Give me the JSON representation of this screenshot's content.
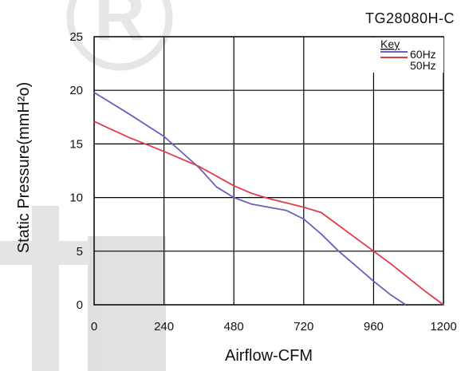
{
  "chart_data": {
    "type": "line",
    "title": "TG28080H-C",
    "xlabel": "Airflow-CFM",
    "ylabel": "Static Pressure(mmH²o)",
    "xlim": [
      0,
      1200
    ],
    "ylim": [
      0,
      25
    ],
    "xticks": [
      0,
      240,
      480,
      720,
      960,
      1200
    ],
    "xtick_labels": [
      "0",
      "240",
      "480",
      "720",
      "960",
      "1200"
    ],
    "yticks": [
      0,
      5,
      10,
      15,
      20,
      25
    ],
    "ytick_labels": [
      "0",
      "5",
      "10",
      "15",
      "20",
      "25"
    ],
    "grid": true,
    "legend": {
      "title": "Key",
      "placement": "top-right"
    },
    "series": [
      {
        "name": "60Hz",
        "color": "#6a5fc0",
        "x": [
          0,
          120,
          240,
          360,
          420,
          480,
          540,
          600,
          660,
          720,
          780,
          840,
          900,
          960,
          1020,
          1070
        ],
        "y": [
          19.8,
          17.8,
          15.7,
          12.8,
          11.0,
          10.0,
          9.4,
          9.1,
          8.8,
          8.0,
          6.6,
          5.0,
          3.6,
          2.2,
          0.9,
          0.0
        ]
      },
      {
        "name": "50Hz",
        "color": "#e23b4a",
        "x": [
          0,
          120,
          240,
          360,
          420,
          480,
          540,
          600,
          660,
          720,
          780,
          840,
          900,
          960,
          1020,
          1080,
          1140,
          1200
        ],
        "y": [
          17.1,
          15.6,
          14.3,
          12.9,
          12.0,
          11.1,
          10.4,
          9.9,
          9.5,
          9.1,
          8.6,
          7.4,
          6.2,
          5.0,
          3.8,
          2.5,
          1.2,
          0.0
        ]
      }
    ]
  }
}
